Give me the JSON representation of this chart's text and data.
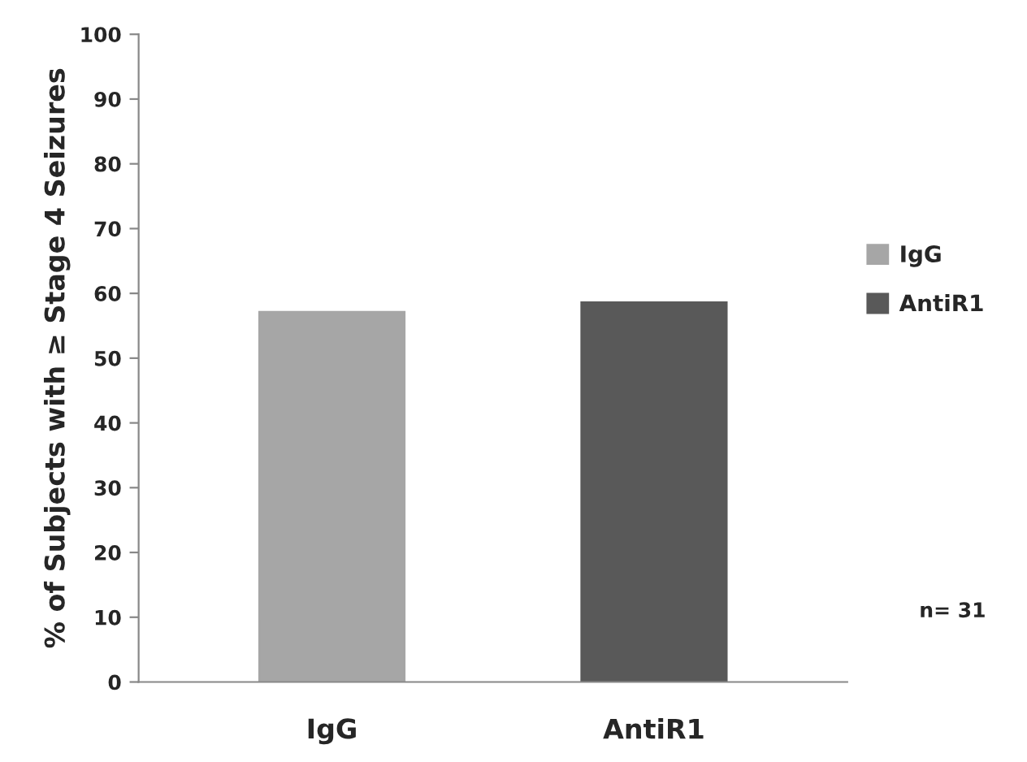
{
  "chart_data": {
    "type": "bar",
    "ylabel": "% of Subjects with ≥ Stage 4 Seizures",
    "categories": [
      "IgG",
      "AntiR1"
    ],
    "series": [
      {
        "name": "IgG",
        "color": "#a6a6a6",
        "values": [
          57.1,
          null
        ]
      },
      {
        "name": "AntiR1",
        "color": "#595959",
        "values": [
          null,
          58.6
        ]
      }
    ],
    "ylim": [
      0,
      100
    ],
    "yticks": [
      0,
      10,
      20,
      30,
      40,
      50,
      60,
      70,
      80,
      90,
      100
    ],
    "grid": false,
    "legend": "right",
    "annotations": [
      "n= 31"
    ]
  }
}
